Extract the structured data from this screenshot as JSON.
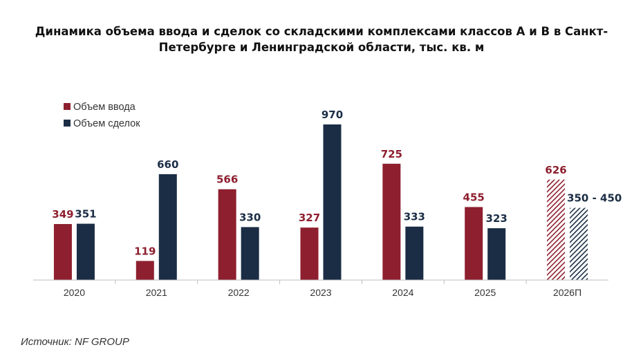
{
  "chart_data": {
    "type": "bar",
    "title": "Динамика объема ввода и сделок со складскими комплексами классов А и В в Санкт-Петербурге и Ленинградской области, тыс. кв. м",
    "categories": [
      "2020",
      "2021",
      "2022",
      "2023",
      "2024",
      "2025",
      "2026П"
    ],
    "series": [
      {
        "name": "Объем ввода",
        "color": "#8E1F2F",
        "values": [
          349,
          119,
          566,
          327,
          725,
          455,
          626
        ],
        "labels": [
          "349",
          "119",
          "566",
          "327",
          "725",
          "455",
          "626"
        ]
      },
      {
        "name": "Объем сделок",
        "color": "#1B2D45",
        "values": [
          351,
          660,
          330,
          970,
          333,
          323,
          450
        ],
        "labels": [
          "351",
          "660",
          "330",
          "970",
          "333",
          "323",
          "350 - 450"
        ]
      }
    ],
    "forecast_category": "2026П",
    "ylim": [
      0,
      1000
    ],
    "xlabel": "",
    "ylabel": "",
    "grid": false,
    "legend_position": "top-left"
  },
  "source": "Источник: NF GROUP"
}
